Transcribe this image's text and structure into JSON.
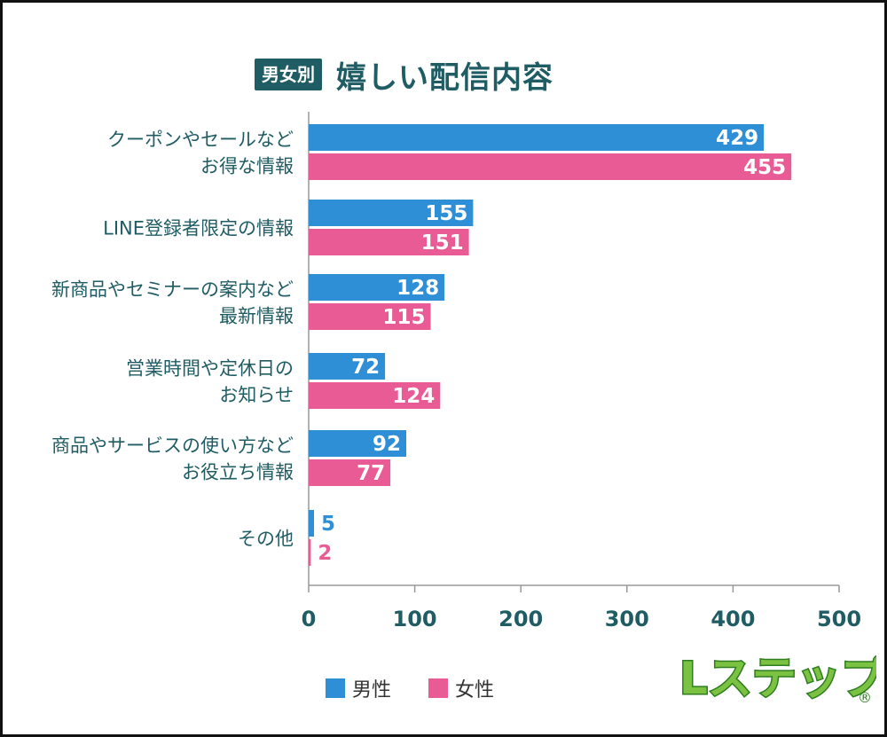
{
  "title": {
    "badge": "男女別",
    "main": "嬉しい配信内容"
  },
  "colors": {
    "male": "#2f8fd6",
    "female": "#e85b95",
    "axis_text": "#1f5c63",
    "category_text": "#1f5c63"
  },
  "legend": {
    "male": "男性",
    "female": "女性"
  },
  "logo": {
    "text": "Lステップ",
    "mark": "®"
  },
  "chart_data": {
    "type": "bar",
    "orientation": "horizontal",
    "categories": [
      [
        "クーポンやセールなど",
        "お得な情報"
      ],
      [
        "LINE登録者限定の情報"
      ],
      [
        "新商品やセミナーの案内など",
        "最新情報"
      ],
      [
        "営業時間や定休日の",
        "お知らせ"
      ],
      [
        "商品やサービスの使い方など",
        "お役立ち情報"
      ],
      [
        "その他"
      ]
    ],
    "series": [
      {
        "name": "男性",
        "values": [
          429,
          155,
          128,
          72,
          92,
          5
        ]
      },
      {
        "name": "女性",
        "values": [
          455,
          151,
          115,
          124,
          77,
          2
        ]
      }
    ],
    "xlim": [
      0,
      500
    ],
    "xticks": [
      "0",
      "100",
      "200",
      "300",
      "400",
      "500"
    ],
    "grid": false,
    "legend_position": "bottom"
  }
}
